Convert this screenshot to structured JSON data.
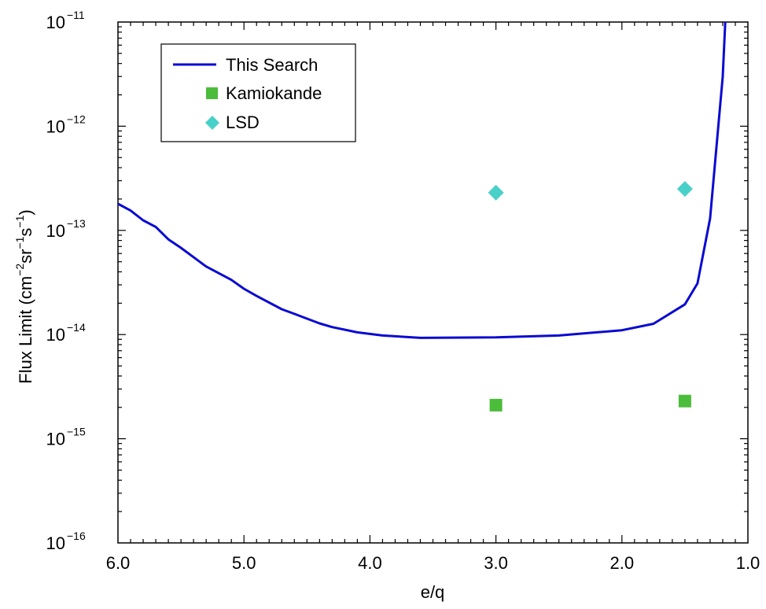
{
  "chart_data": {
    "type": "line",
    "title": "",
    "xlabel": "e/q",
    "ylabel": {
      "text": "Flux Limit (cm",
      "exp1": "−2",
      "mid1": "sr",
      "exp2": "−1",
      "mid2": "s",
      "exp3": "−1",
      "end": ")"
    },
    "x_axis": {
      "reversed": true,
      "xlim": [
        6.0,
        1.0
      ],
      "ticks": [
        6.0,
        5.0,
        4.0,
        3.0,
        2.0,
        1.0
      ],
      "tick_labels": [
        "6.0",
        "5.0",
        "4.0",
        "3.0",
        "2.0",
        "1.0"
      ]
    },
    "y_axis": {
      "scale": "log",
      "ylim": [
        1e-16,
        1e-11
      ],
      "ticks": [
        {
          "value": 1e-16,
          "base": "10",
          "exp": "−16"
        },
        {
          "value": 1e-15,
          "base": "10",
          "exp": "−15"
        },
        {
          "value": 1e-14,
          "base": "10",
          "exp": "−14"
        },
        {
          "value": 1e-13,
          "base": "10",
          "exp": "−13"
        },
        {
          "value": 1e-12,
          "base": "10",
          "exp": "−12"
        },
        {
          "value": 1e-11,
          "base": "10",
          "exp": "−11"
        }
      ]
    },
    "grid": false,
    "legend_position": "top-left",
    "series": [
      {
        "name": "This Search",
        "kind": "line",
        "color": "#0a0ad2",
        "x": [
          6.0,
          5.9,
          5.8,
          5.7,
          5.6,
          5.5,
          5.3,
          5.1,
          5.0,
          4.9,
          4.7,
          4.6,
          4.4,
          4.3,
          4.1,
          3.9,
          3.6,
          3.0,
          2.5,
          2.0,
          1.75,
          1.5,
          1.4,
          1.3,
          1.2,
          1.18
        ],
        "y": [
          1.8e-13,
          1.55e-13,
          1.25e-13,
          1.08e-13,
          8.2e-14,
          6.8e-14,
          4.5e-14,
          3.35e-14,
          2.75e-14,
          2.35e-14,
          1.75e-14,
          1.58e-14,
          1.28e-14,
          1.18e-14,
          1.05e-14,
          9.8e-15,
          9.3e-15,
          9.4e-15,
          9.8e-15,
          1.1e-14,
          1.27e-14,
          1.95e-14,
          3.1e-14,
          1.3e-13,
          3e-12,
          1e-11
        ]
      },
      {
        "name": "Kamiokande",
        "kind": "square",
        "color": "#4cbd3a",
        "x": [
          3.0,
          1.5
        ],
        "y": [
          2.1e-15,
          2.3e-15
        ]
      },
      {
        "name": "LSD",
        "kind": "diamond",
        "color": "#48d1c8",
        "x": [
          3.0,
          1.5
        ],
        "y": [
          2.3e-13,
          2.5e-13
        ]
      }
    ]
  }
}
